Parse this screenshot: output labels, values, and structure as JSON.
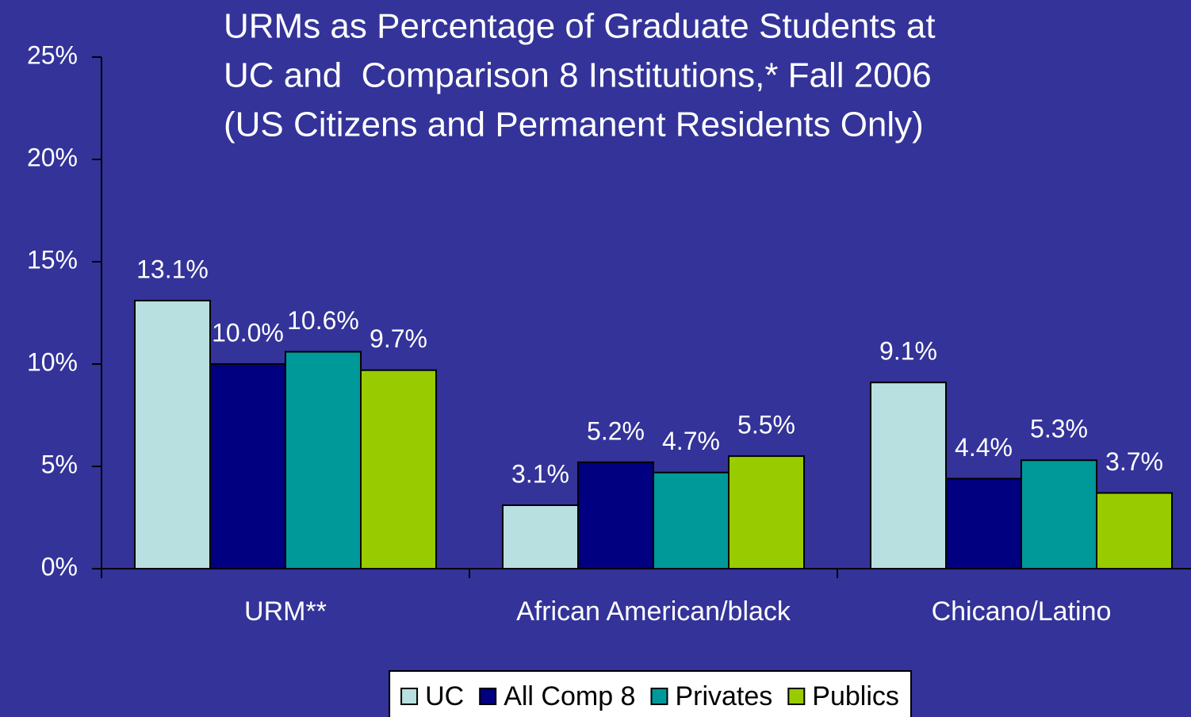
{
  "chart_data": {
    "type": "bar",
    "title": [
      "URMs as Percentage of Graduate Students at",
      "UC and  Comparison 8 Institutions,* Fall 2006",
      "(US Citizens and Permanent Residents Only)"
    ],
    "categories": [
      "URM**",
      "African American/black",
      "Chicano/Latino"
    ],
    "series": [
      {
        "name": "UC",
        "color": "#b8e0e0",
        "values": [
          13.1,
          3.1,
          9.1
        ],
        "value_labels": [
          "13.1%",
          "3.1%",
          "9.1%"
        ]
      },
      {
        "name": "All Comp 8",
        "color": "#000080",
        "values": [
          10.0,
          5.2,
          4.4
        ],
        "value_labels": [
          "10.0%",
          "5.2%",
          "4.4%"
        ]
      },
      {
        "name": "Privates",
        "color": "#009999",
        "values": [
          10.6,
          4.7,
          5.3
        ],
        "value_labels": [
          "10.6%",
          "4.7%",
          "5.3%"
        ]
      },
      {
        "name": "Publics",
        "color": "#99cc00",
        "values": [
          9.7,
          5.5,
          3.7
        ],
        "value_labels": [
          "9.7%",
          "5.5%",
          "3.7%"
        ]
      }
    ],
    "ylim": [
      0,
      25
    ],
    "yticks": [
      {
        "value": 0,
        "label": "0%"
      },
      {
        "value": 5,
        "label": "5%"
      },
      {
        "value": 10,
        "label": "10%"
      },
      {
        "value": 15,
        "label": "15%"
      },
      {
        "value": 20,
        "label": "20%"
      },
      {
        "value": 25,
        "label": "25%"
      }
    ],
    "legend": "bottom"
  }
}
